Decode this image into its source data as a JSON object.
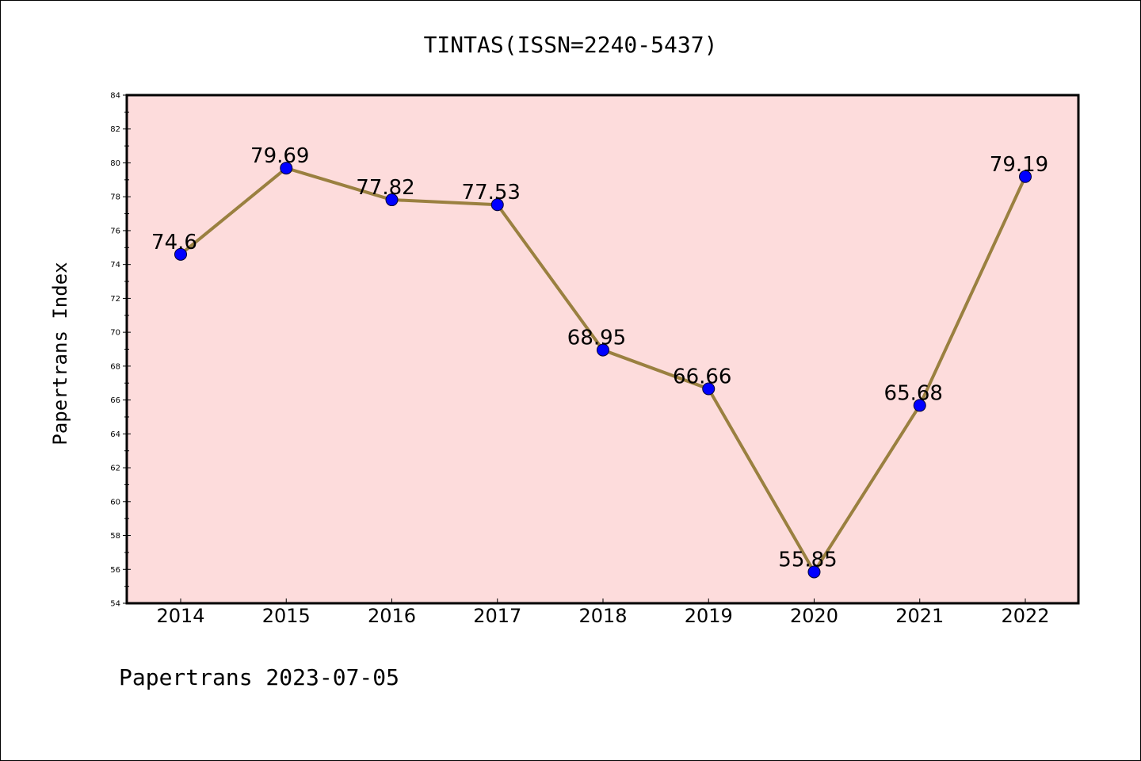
{
  "chart_data": {
    "type": "line",
    "title": "TINTAS(ISSN=2240-5437)",
    "xlabel": "",
    "ylabel": "Papertrans Index",
    "categories": [
      "2014",
      "2015",
      "2016",
      "2017",
      "2018",
      "2019",
      "2020",
      "2021",
      "2022"
    ],
    "series": [
      {
        "values": [
          74.6,
          79.69,
          77.82,
          77.53,
          68.95,
          66.66,
          55.85,
          65.68,
          79.19
        ],
        "labels": [
          "74.6",
          "79.69",
          "77.82",
          "77.53",
          "68.95",
          "66.66",
          "55.85",
          "65.68",
          "79.19"
        ]
      }
    ],
    "ylim": [
      54,
      84
    ],
    "yticks": [
      54,
      56,
      58,
      60,
      62,
      64,
      66,
      68,
      70,
      72,
      74,
      76,
      78,
      80,
      82,
      84
    ],
    "grid": false,
    "legend": "none",
    "colors": {
      "plot_background": "#fddcdc",
      "line": "#9a8040",
      "marker": "#0000ff"
    }
  },
  "footer": {
    "text": "Papertrans 2023-07-05"
  }
}
